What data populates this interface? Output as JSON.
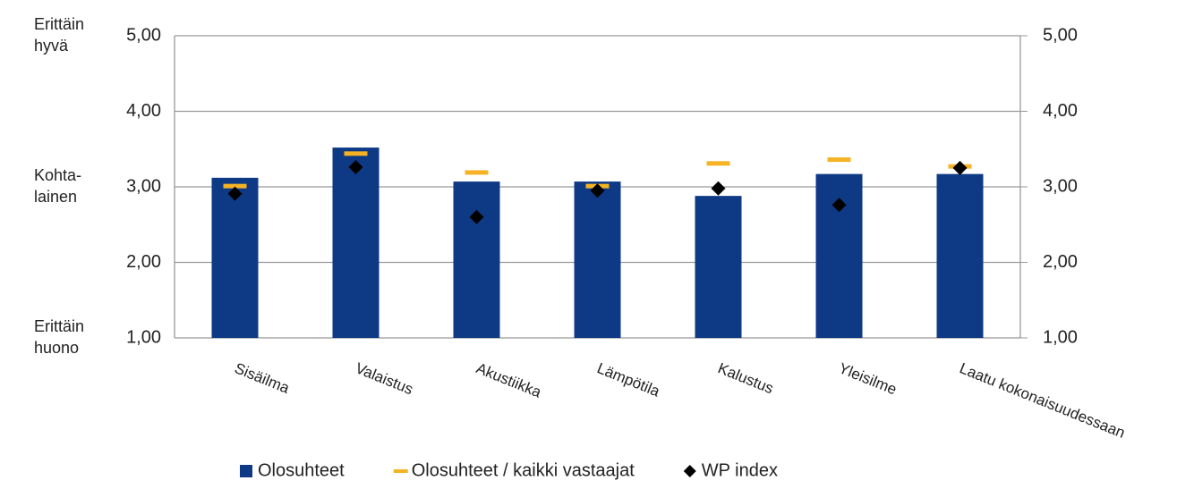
{
  "chart_data": {
    "type": "bar",
    "categories": [
      "Sisäilma",
      "Valaistus",
      "Akustiikka",
      "Lämpötila",
      "Kalustus",
      "Yleisilme",
      "Laatu kokonaisuudessaan"
    ],
    "series": [
      {
        "name": "Olosuhteet",
        "color": "#0e3a85",
        "marker": "bar",
        "values": [
          3.12,
          3.52,
          3.07,
          3.07,
          2.88,
          3.17,
          3.17
        ]
      },
      {
        "name": "Olosuhteet / kaikki vastaajat",
        "color": "#f5b323",
        "marker": "dash",
        "values": [
          3.01,
          3.44,
          3.19,
          3.01,
          3.31,
          3.36,
          3.27
        ]
      },
      {
        "name": "WP index",
        "color": "#000000",
        "marker": "diamond",
        "values": [
          2.91,
          3.26,
          2.6,
          2.95,
          2.98,
          2.76,
          3.25
        ]
      }
    ],
    "ylim": [
      1,
      5
    ],
    "yticks": [
      {
        "value": 1,
        "label": "1,00"
      },
      {
        "value": 2,
        "label": "2,00"
      },
      {
        "value": 3,
        "label": "3,00"
      },
      {
        "value": 4,
        "label": "4,00"
      },
      {
        "value": 5,
        "label": "5,00"
      }
    ],
    "y2lim": [
      1,
      5
    ],
    "y2ticks": [
      {
        "value": 1,
        "label": "1,00"
      },
      {
        "value": 2,
        "label": "2,00"
      },
      {
        "value": 3,
        "label": "3,00"
      },
      {
        "value": 4,
        "label": "4,00"
      },
      {
        "value": 5,
        "label": "5,00"
      }
    ],
    "side_labels": [
      {
        "value": 5,
        "lines": [
          "Erittäin",
          "hyvä"
        ]
      },
      {
        "value": 3,
        "lines": [
          "Kohta-",
          "lainen"
        ]
      },
      {
        "value": 1,
        "lines": [
          "Erittäin",
          "huono"
        ]
      }
    ],
    "grid": true,
    "legend": "bottom"
  }
}
